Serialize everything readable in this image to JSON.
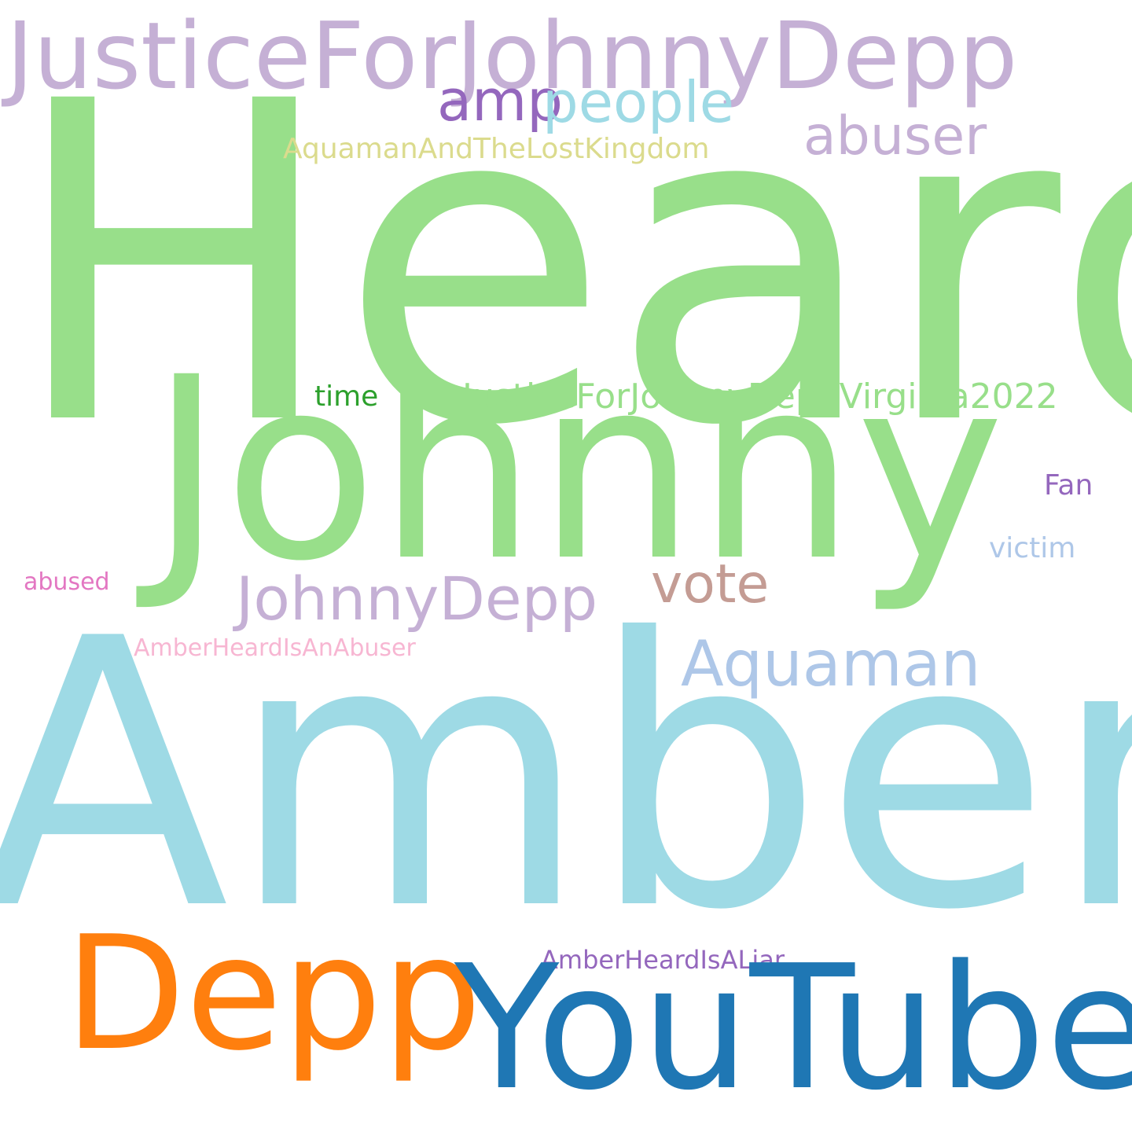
{
  "words": [
    {
      "text": "JusticeForJohnnyDepp",
      "color": "#c5b0d5"
    },
    {
      "text": "Heard",
      "color": "#98df8a"
    },
    {
      "text": "amp",
      "color": "#9467bd"
    },
    {
      "text": "people",
      "color": "#9edae5"
    },
    {
      "text": "abuser",
      "color": "#c5b0d5"
    },
    {
      "text": "AquamanAndTheLostKingdom",
      "color": "#dbdb8d"
    },
    {
      "text": "Johnny",
      "color": "#98df8a"
    },
    {
      "text": "time",
      "color": "#2ca02c"
    },
    {
      "text": "JusticeForJohnnyDeppVirginia2022",
      "color": "#98df8a"
    },
    {
      "text": "Fan",
      "color": "#9467bd"
    },
    {
      "text": "victim",
      "color": "#aec7e8"
    },
    {
      "text": "vote",
      "color": "#c49c94"
    },
    {
      "text": "abused",
      "color": "#e377c2"
    },
    {
      "text": "JohnnyDepp",
      "color": "#c5b0d5"
    },
    {
      "text": "AmberHeardIsAnAbuser",
      "color": "#f7b6d2"
    },
    {
      "text": "Aquaman",
      "color": "#aec7e8"
    },
    {
      "text": "Amber",
      "color": "#9edae5"
    },
    {
      "text": "AmberHeardIsALiar",
      "color": "#9467bd"
    },
    {
      "text": "Depp",
      "color": "#ff7f0e"
    },
    {
      "text": "YouTube",
      "color": "#1f77b4"
    }
  ]
}
